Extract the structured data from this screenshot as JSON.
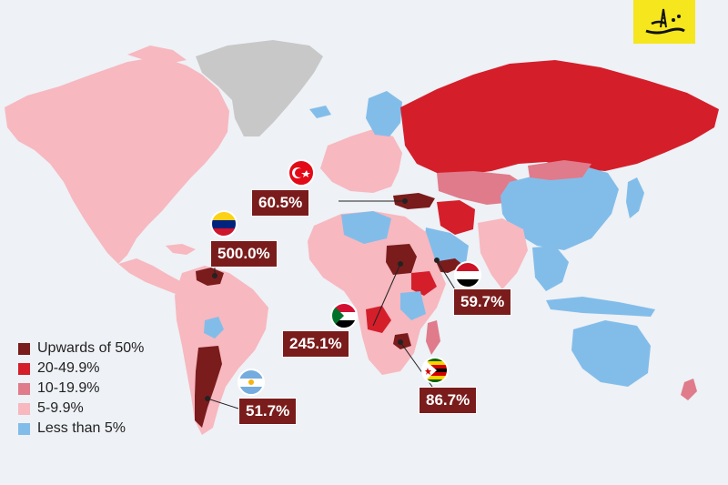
{
  "colors": {
    "ocean": "#eef1f5",
    "upwards_of_50": "#7a1c1c",
    "20_49_9": "#d41f2b",
    "10_19_9": "#e07b8b",
    "5_9_9": "#f7b8c0",
    "less_than_5": "#82bdea",
    "no_data": "#c8c8c8",
    "logo_bg": "#f5e61e"
  },
  "legend": {
    "items": [
      {
        "label": "Upwards of 50%",
        "color": "#7a1c1c"
      },
      {
        "label": "20-49.9%",
        "color": "#d41f2b"
      },
      {
        "label": "10-19.9%",
        "color": "#e07b8b"
      },
      {
        "label": "5-9.9%",
        "color": "#f7b8c0"
      },
      {
        "label": "Less than 5%",
        "color": "#82bdea"
      }
    ]
  },
  "callouts": {
    "turkey": {
      "value": "60.5%",
      "flag": "turkey-flag"
    },
    "venezuela": {
      "value": "500.0%",
      "flag": "venezuela-flag"
    },
    "yemen": {
      "value": "59.7%",
      "flag": "yemen-flag"
    },
    "sudan": {
      "value": "245.1%",
      "flag": "sudan-flag"
    },
    "zimbabwe": {
      "value": "86.7%",
      "flag": "zimbabwe-flag"
    },
    "argentina": {
      "value": "51.7%",
      "flag": "argentina-flag"
    }
  }
}
